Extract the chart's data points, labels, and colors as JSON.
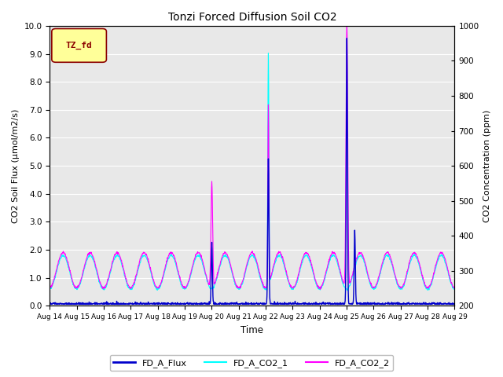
{
  "title": "Tonzi Forced Diffusion Soil CO2",
  "xlabel": "Time",
  "ylabel_left": "CO2 Soil Flux (μmol/m2/s)",
  "ylabel_right": "CO2 Concentration (ppm)",
  "ylim_left": [
    0.0,
    10.0
  ],
  "ylim_right": [
    200,
    1000
  ],
  "xtick_labels": [
    "Aug 14",
    "Aug 15",
    "Aug 16",
    "Aug 17",
    "Aug 18",
    "Aug 19",
    "Aug 20",
    "Aug 21",
    "Aug 22",
    "Aug 23",
    "Aug 24",
    "Aug 25",
    "Aug 26",
    "Aug 27",
    "Aug 28",
    "Aug 29"
  ],
  "legend_labels": [
    "FD_A_Flux",
    "FD_A_CO2_1",
    "FD_A_CO2_2"
  ],
  "legend_colors": [
    "#0000cc",
    "#00ffff",
    "#ff00ff"
  ],
  "tag_text": "TZ_fd",
  "tag_bg": "#ffff99",
  "tag_border": "#8b0000",
  "tag_text_color": "#8b0000",
  "bg_color": "#e8e8e8",
  "grid_color": "#ffffff",
  "n_days": 15,
  "n_points_per_day": 96
}
